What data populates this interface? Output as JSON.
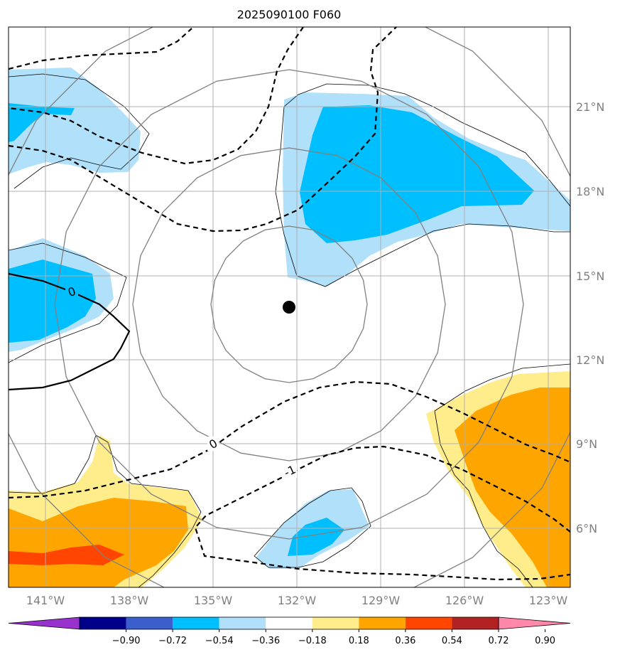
{
  "chart_data": {
    "type": "contour_map",
    "title": "2025090100 F060",
    "lon_ticks": [
      "141°W",
      "138°W",
      "135°W",
      "132°W",
      "129°W",
      "126°W",
      "123°W"
    ],
    "lat_ticks": [
      "21°N",
      "18°N",
      "15°N",
      "12°N",
      "9°N",
      "6°N"
    ],
    "lon_range": [
      -142.2,
      -122.2
    ],
    "lat_range": [
      3.9,
      23.8
    ],
    "grid": true,
    "storm_center": {
      "lon": -132.3,
      "lat": 13.8
    },
    "range_rings": true,
    "colorbar": {
      "levels": [
        "-0.90",
        "-0.72",
        "-0.54",
        "-0.36",
        "-0.18",
        "0.18",
        "0.36",
        "0.54",
        "0.72",
        "0.90"
      ],
      "colors": [
        "#9932cc",
        "#00008b",
        "#3a5fcd",
        "#00bfff",
        "#b0e0fa",
        "#ffffff",
        "#ffec8b",
        "#ffa500",
        "#ff4500",
        "#b22222",
        "#ff88aa"
      ],
      "extend": "both"
    },
    "contour_labels": [
      "0",
      "0",
      "-1"
    ],
    "colors": {
      "grid": "#b0b0b0",
      "ring": "#808080",
      "contour": "#000000"
    }
  }
}
